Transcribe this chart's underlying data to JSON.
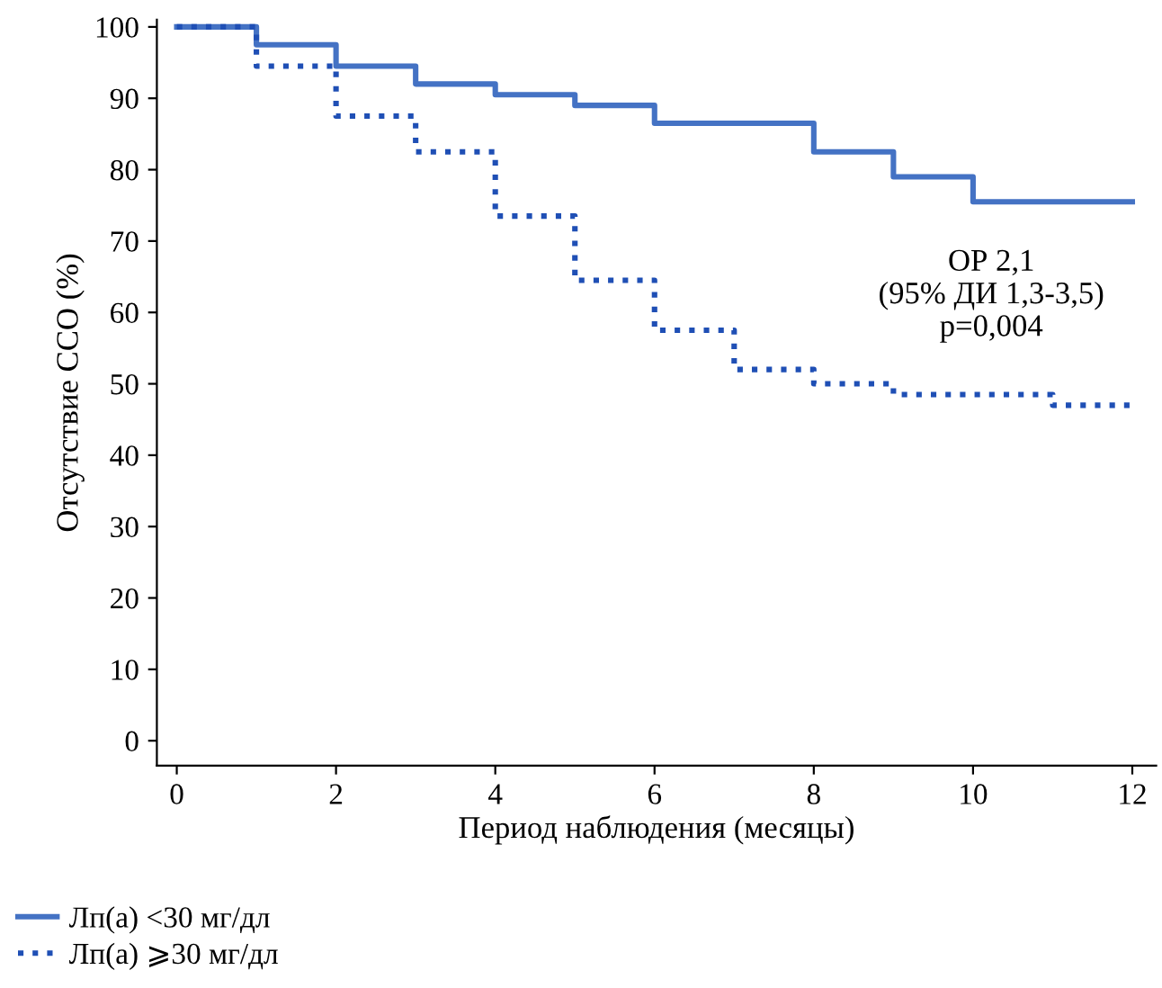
{
  "chart_data": {
    "type": "step",
    "xlabel": "Период наблюдения (месяцы)",
    "ylabel": "Отсутствие ССО (%)",
    "xlim": [
      -0.25,
      12.3
    ],
    "ylim": [
      -3.5,
      101
    ],
    "xticks": [
      0,
      2,
      4,
      6,
      8,
      10,
      12
    ],
    "yticks": [
      0,
      10,
      20,
      30,
      40,
      50,
      60,
      70,
      80,
      90,
      100
    ],
    "grid": false,
    "legend": "bottom left",
    "annotations": [
      "ОР 2,1\n(95% ДИ 1,3-3,5)\np=0,004"
    ],
    "series": [
      {
        "name": "Лп(а) <30 мг/дл",
        "color": "#4472c4",
        "line_style": "solid",
        "x": [
          0,
          1,
          2,
          3,
          4,
          5,
          6,
          8,
          9,
          10,
          12
        ],
        "values": [
          100,
          97.5,
          94.5,
          92,
          90.5,
          89,
          86.5,
          82.5,
          79,
          75.5,
          75.5
        ]
      },
      {
        "name": "Лп(а) ⩾30 мг/дл",
        "color": "#1f4fb5",
        "line_style": "dotted",
        "x": [
          0,
          1,
          2,
          3,
          4,
          5,
          6,
          7,
          8,
          9,
          11,
          12
        ],
        "values": [
          100,
          94.5,
          87.5,
          82.5,
          73.5,
          64.5,
          57.5,
          52,
          50,
          48.5,
          47,
          47
        ]
      }
    ]
  }
}
